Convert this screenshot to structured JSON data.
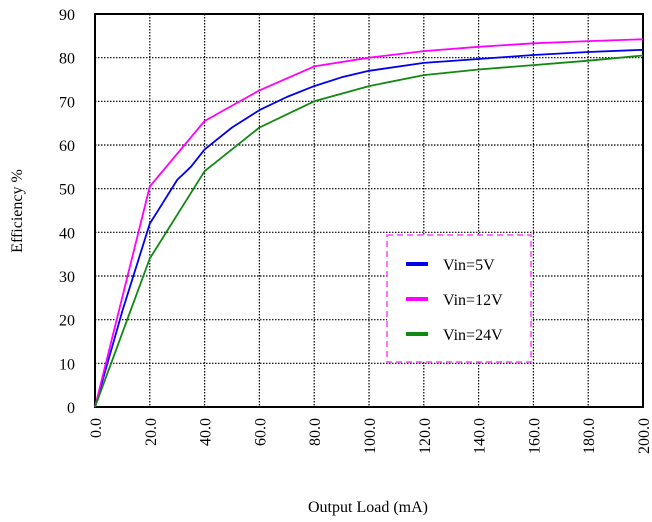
{
  "chart_data": {
    "type": "line",
    "title": "",
    "xlabel": "Output Load (mA)",
    "ylabel": "Efficiency %",
    "xlim": [
      0,
      200
    ],
    "ylim": [
      0,
      90
    ],
    "x_ticks": [
      "0.0",
      "20.0",
      "40.0",
      "60.0",
      "80.0",
      "100.0",
      "120.0",
      "140.0",
      "160.0",
      "180.0",
      "200.0"
    ],
    "y_ticks": [
      "0",
      "10",
      "20",
      "30",
      "40",
      "50",
      "60",
      "70",
      "80",
      "90"
    ],
    "grid": true,
    "legend_position": "center-right",
    "series": [
      {
        "name": "Vin=5V",
        "color": "#0000ee",
        "points": [
          [
            0,
            0
          ],
          [
            10,
            22
          ],
          [
            20,
            42
          ],
          [
            25,
            47
          ],
          [
            30,
            52
          ],
          [
            35,
            55
          ],
          [
            40,
            59
          ],
          [
            50,
            64
          ],
          [
            60,
            68
          ],
          [
            70,
            71
          ],
          [
            80,
            73.5
          ],
          [
            90,
            75.5
          ],
          [
            100,
            77
          ],
          [
            120,
            78.8
          ],
          [
            140,
            79.7
          ],
          [
            160,
            80.6
          ],
          [
            180,
            81.3
          ],
          [
            200,
            81.8
          ]
        ]
      },
      {
        "name": "Vin=12V",
        "color": "#ff00ff",
        "points": [
          [
            0,
            0
          ],
          [
            20,
            50.5
          ],
          [
            40,
            65.5
          ],
          [
            60,
            72.5
          ],
          [
            80,
            78
          ],
          [
            100,
            80
          ],
          [
            120,
            81.5
          ],
          [
            140,
            82.5
          ],
          [
            160,
            83.3
          ],
          [
            180,
            83.8
          ],
          [
            200,
            84.2
          ]
        ]
      },
      {
        "name": "Vin=24V",
        "color": "#118811",
        "points": [
          [
            0,
            0
          ],
          [
            20,
            34
          ],
          [
            40,
            54
          ],
          [
            60,
            64
          ],
          [
            80,
            70
          ],
          [
            100,
            73.5
          ],
          [
            120,
            76
          ],
          [
            140,
            77.3
          ],
          [
            160,
            78.3
          ],
          [
            180,
            79.3
          ],
          [
            200,
            80.5
          ]
        ]
      }
    ]
  }
}
